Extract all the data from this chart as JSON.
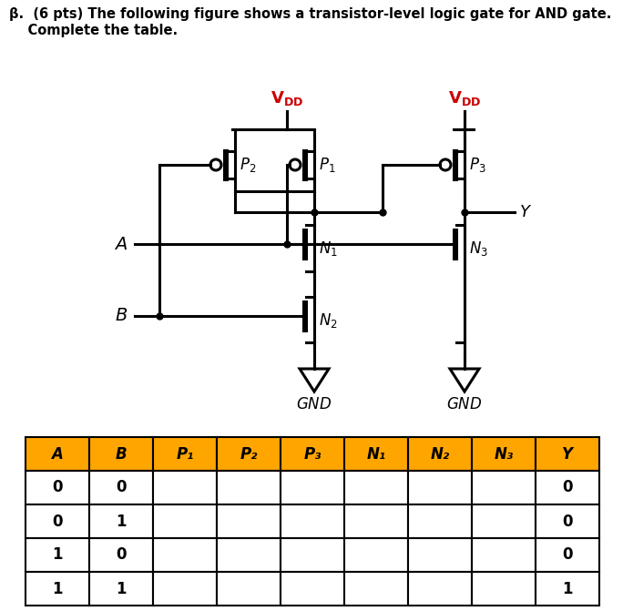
{
  "title_line1": "β.  (6 pts) The following figure shows a transistor-level logic gate for AND gate.",
  "title_line2": "    Complete the table.",
  "header_labels": [
    "A",
    "B",
    "P₁",
    "P₂",
    "P₃",
    "N₁",
    "N₂",
    "N₃",
    "Y"
  ],
  "rows": [
    [
      "0",
      "0",
      "",
      "",
      "",
      "",
      "",
      "",
      "0"
    ],
    [
      "0",
      "1",
      "",
      "",
      "",
      "",
      "",
      "",
      "0"
    ],
    [
      "1",
      "0",
      "",
      "",
      "",
      "",
      "",
      "",
      "0"
    ],
    [
      "1",
      "1",
      "",
      "",
      "",
      "",
      "",
      "",
      "1"
    ]
  ],
  "bg_color": "#ffffff",
  "orange_color": "#FFA500",
  "vdd_color": "#cc0000",
  "black": "#000000",
  "white": "#ffffff"
}
